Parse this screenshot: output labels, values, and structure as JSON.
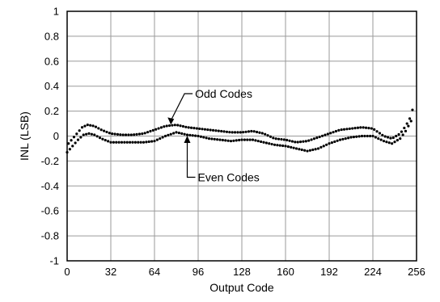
{
  "chart_data": {
    "type": "scatter",
    "title": "",
    "xlabel": "Output Code",
    "ylabel": "INL (LSB)",
    "xlim": [
      0,
      256
    ],
    "ylim": [
      -1,
      1
    ],
    "x_ticks": [
      0,
      32,
      64,
      96,
      128,
      160,
      192,
      224,
      256
    ],
    "y_ticks": [
      1,
      0.8,
      0.6,
      0.4,
      0.2,
      0,
      -0.2,
      -0.4,
      -0.6,
      -0.8,
      -1
    ],
    "x_tick_labels": [
      "0",
      "32",
      "64",
      "96",
      "128",
      "160",
      "192",
      "224",
      "256"
    ],
    "y_tick_labels": [
      "1",
      "0.8",
      "0.6",
      "0.4",
      "0.2",
      "0",
      "-0.2",
      "-0.4",
      "-0.6",
      "-0.8",
      "-1"
    ],
    "grid": true,
    "marker_color": "#000000",
    "annotations": [
      {
        "text": "Odd Codes",
        "series": "odd",
        "arrow_x": 76
      },
      {
        "text": "Even Codes",
        "series": "even",
        "arrow_x": 88
      }
    ],
    "series": [
      {
        "key": "odd",
        "x": [
          1,
          11,
          15,
          20,
          25,
          32,
          40,
          48,
          56,
          64,
          72,
          80,
          88,
          96,
          104,
          112,
          120,
          128,
          136,
          144,
          152,
          160,
          168,
          176,
          184,
          192,
          200,
          208,
          216,
          224,
          232,
          238,
          244,
          248,
          251,
          253
        ],
        "y": [
          -0.06,
          0.07,
          0.09,
          0.08,
          0.05,
          0.02,
          0.01,
          0.01,
          0.02,
          0.05,
          0.08,
          0.09,
          0.07,
          0.06,
          0.05,
          0.04,
          0.03,
          0.03,
          0.04,
          0.02,
          -0.02,
          -0.03,
          -0.05,
          -0.04,
          -0.01,
          0.02,
          0.05,
          0.06,
          0.07,
          0.06,
          0.0,
          -0.02,
          0.02,
          0.08,
          0.14,
          0.21
        ]
      },
      {
        "key": "even",
        "x": [
          0,
          4,
          8,
          12,
          16,
          20,
          25,
          32,
          40,
          48,
          56,
          64,
          72,
          80,
          88,
          96,
          104,
          112,
          120,
          128,
          136,
          144,
          152,
          160,
          168,
          176,
          184,
          192,
          200,
          208,
          216,
          224,
          232,
          238,
          244,
          248,
          252
        ],
        "y": [
          -0.13,
          -0.08,
          -0.03,
          0.01,
          0.02,
          0.01,
          -0.02,
          -0.05,
          -0.05,
          -0.05,
          -0.05,
          -0.04,
          0.0,
          0.03,
          0.01,
          0.0,
          -0.02,
          -0.03,
          -0.04,
          -0.03,
          -0.03,
          -0.05,
          -0.07,
          -0.08,
          -0.1,
          -0.12,
          -0.1,
          -0.06,
          -0.03,
          -0.01,
          0.0,
          0.0,
          -0.04,
          -0.06,
          -0.02,
          0.04,
          0.12
        ]
      }
    ]
  }
}
